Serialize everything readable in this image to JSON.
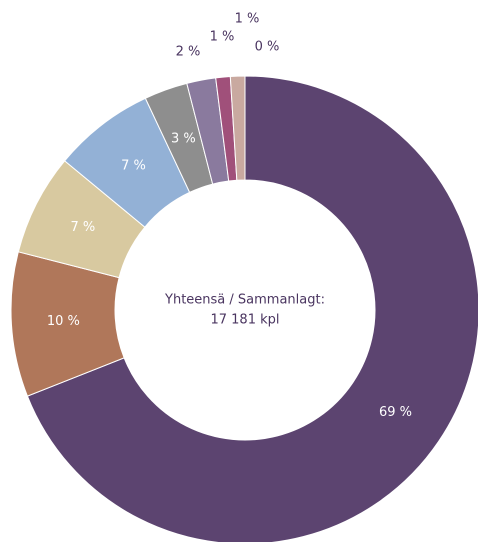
{
  "chart_data": {
    "type": "donut",
    "values": [
      69,
      10,
      7,
      7,
      3,
      2,
      1,
      1,
      0
    ],
    "value_labels": [
      "69 %",
      "10 %",
      "7 %",
      "7 %",
      "3 %",
      "2 %",
      "1 %",
      "1 %",
      "0 %"
    ],
    "colors": [
      "#5c4470",
      "#b0775a",
      "#d8c9a0",
      "#93b1d6",
      "#8e8e8e",
      "#8a7a9e",
      "#a0507a",
      "#c9a9a0",
      "#a3b07a"
    ],
    "annotations": [
      "Yhteensä / Sammanlagt:",
      "17 181 kpl"
    ]
  }
}
